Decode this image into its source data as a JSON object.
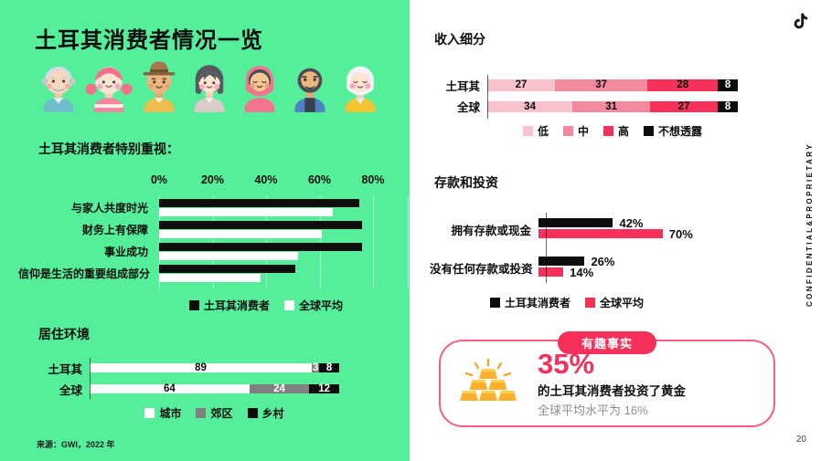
{
  "slide": {
    "page_number": "20",
    "confidential_text": "CONFIDENTIAL&PROPRIETARY",
    "source": "来源：GWI，2022 年"
  },
  "left_panel": {
    "title": "土耳其消费者情况一览",
    "avatars": [
      "elderly-man",
      "pink-hair-girl",
      "man-with-hat",
      "dark-hair-woman",
      "hijab-woman",
      "bearded-man",
      "elderly-woman"
    ],
    "values_title": "土耳其消费者特别重视：",
    "living_title": "居住环境"
  },
  "right_panel": {
    "income_title": "收入细分",
    "savings_title": "存款和投资",
    "brand_icon": "tiktok-note-icon",
    "fun_fact": {
      "badge": "有趣事实",
      "icon": "gold-bars-icon",
      "stat": "35%",
      "desc": "的土耳其消费者投资了黄金",
      "note": "全球平均水平为 16%"
    }
  },
  "colors": {
    "green_bg": "#55EF9B",
    "accent_red": "#F5305A",
    "pink_light": "#F8C2CC",
    "pink_mid": "#F3899D",
    "gray_segment": "#808080",
    "funfact_border": "#F8607E",
    "note_gray": "#8E8E8E"
  },
  "chart_data": [
    {
      "id": "values",
      "type": "bar",
      "orientation": "horizontal",
      "title": "土耳其消费者特别重视：",
      "categories": [
        "与家人共度时光",
        "财务上有保障",
        "事业成功",
        "信仰是生活的重要组成部分"
      ],
      "series": [
        {
          "name": "土耳其消费者",
          "color": "#0D0D0D",
          "values": [
            75,
            76,
            76,
            51
          ]
        },
        {
          "name": "全球平均",
          "color": "#FFFFFF",
          "values": [
            65,
            61,
            52,
            38
          ]
        }
      ],
      "x_axis": {
        "ticks": [
          "0%",
          "20%",
          "40%",
          "60%",
          "80%"
        ],
        "values": [
          0,
          20,
          40,
          60,
          80
        ]
      },
      "xlim": [
        0,
        93
      ],
      "grid": true,
      "legend_position": "bottom"
    },
    {
      "id": "living",
      "type": "bar",
      "subtype": "stacked",
      "orientation": "horizontal",
      "title": "居住环境",
      "categories": [
        "土耳其",
        "全球"
      ],
      "series": [
        {
          "name": "城市",
          "color": "#FFFFFF",
          "text_color": "#0D0D0D",
          "values": [
            89,
            64
          ]
        },
        {
          "name": "郊区",
          "color": "#808080",
          "text_color": "#FFFFFF",
          "values": [
            3,
            24
          ]
        },
        {
          "name": "乡村",
          "color": "#0D0D0D",
          "text_color": "#FFFFFF",
          "values": [
            8,
            12
          ]
        }
      ],
      "xlim": [
        0,
        100
      ],
      "legend_position": "bottom"
    },
    {
      "id": "income",
      "type": "bar",
      "subtype": "stacked",
      "orientation": "horizontal",
      "title": "收入细分",
      "categories": [
        "土耳其",
        "全球"
      ],
      "series": [
        {
          "name": "低",
          "color": "#F8C2CC",
          "text_color": "#0D0D0D",
          "values": [
            27,
            34
          ]
        },
        {
          "name": "中",
          "color": "#F3899D",
          "text_color": "#0D0D0D",
          "values": [
            37,
            31
          ]
        },
        {
          "name": "高",
          "color": "#F5305A",
          "text_color": "#0D0D0D",
          "values": [
            28,
            27
          ]
        },
        {
          "name": "不想透露",
          "color": "#0D0D0D",
          "text_color": "#FFFFFF",
          "values": [
            8,
            8
          ]
        }
      ],
      "xlim": [
        0,
        100
      ],
      "legend_position": "bottom"
    },
    {
      "id": "savings",
      "type": "bar",
      "orientation": "horizontal",
      "title": "存款和投资",
      "categories": [
        "拥有存款或现金",
        "没有任何存款或投资"
      ],
      "series": [
        {
          "name": "土耳其消费者",
          "color": "#0D0D0D",
          "values": [
            42,
            26
          ],
          "labels": [
            "42%",
            "26%"
          ]
        },
        {
          "name": "全球平均",
          "color": "#F5305A",
          "values": [
            70,
            14
          ],
          "labels": [
            "70%",
            "14%"
          ]
        }
      ],
      "show_value_labels": true,
      "legend_position": "bottom"
    }
  ]
}
